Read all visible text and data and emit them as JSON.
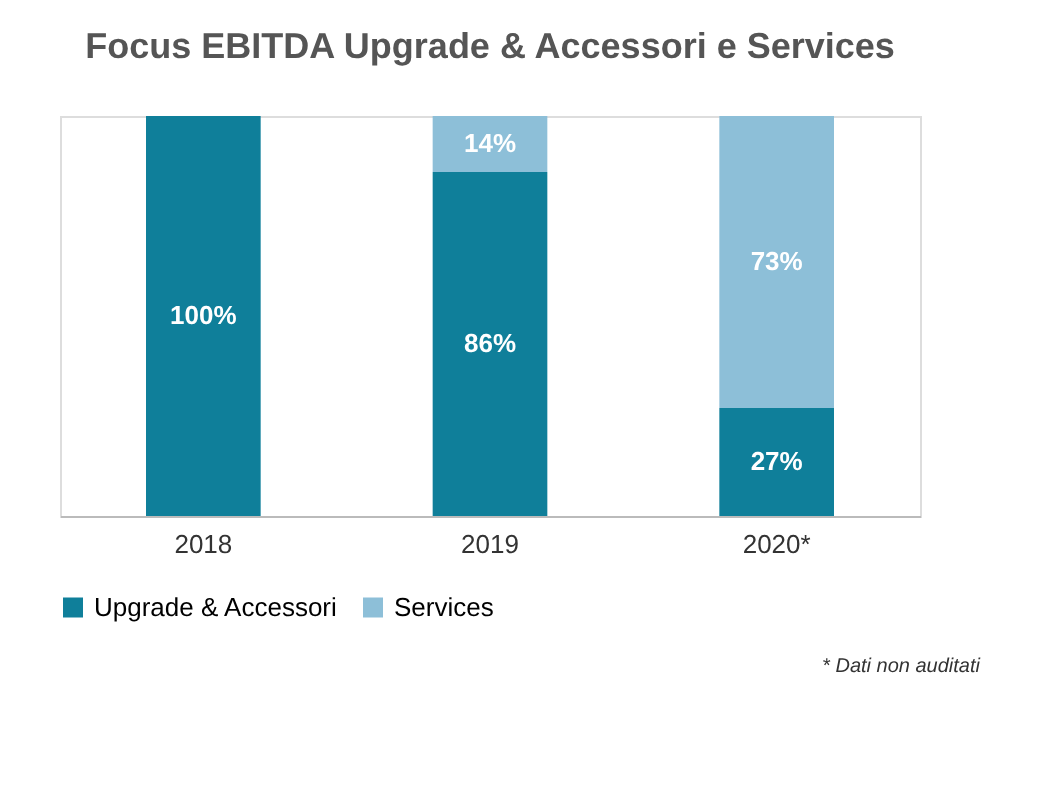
{
  "chart_data": {
    "type": "bar",
    "stacked": true,
    "title": "Focus EBITDA Upgrade & Accessori e Services",
    "categories": [
      "2018",
      "2019",
      "2020*"
    ],
    "series": [
      {
        "name": "Upgrade & Accessori",
        "color": "#0f7f9a",
        "values": [
          100,
          86,
          27
        ],
        "value_labels": [
          "100%",
          "86%",
          "27%"
        ]
      },
      {
        "name": "Services",
        "color": "#8dbfd8",
        "values": [
          null,
          14,
          73
        ],
        "value_labels": [
          null,
          "14%",
          "73%"
        ]
      }
    ],
    "legend": "bottom",
    "annotations": [
      "* Dati non auditati"
    ]
  }
}
